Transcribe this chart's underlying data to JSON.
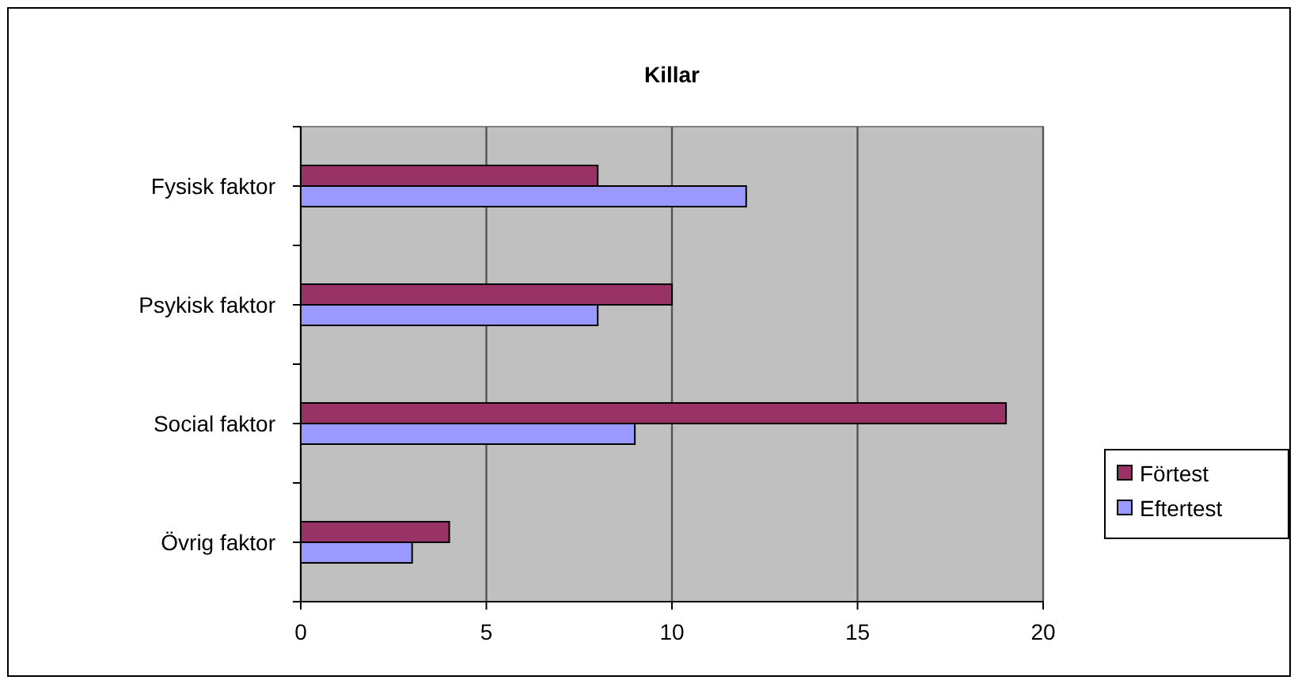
{
  "chart_data": {
    "type": "bar",
    "orientation": "horizontal",
    "title": "Killar",
    "categories": [
      "Fysisk faktor",
      "Psykisk faktor",
      "Social faktor",
      "Övrig faktor"
    ],
    "series": [
      {
        "name": "Förtest",
        "color": "#993366",
        "values": [
          8,
          10,
          19,
          4
        ]
      },
      {
        "name": "Eftertest",
        "color": "#9999ff",
        "values": [
          12,
          8,
          9,
          3
        ]
      }
    ],
    "xlim": [
      0,
      20
    ],
    "xticks": [
      0,
      5,
      10,
      15,
      20
    ],
    "grid": "x",
    "legend": "right"
  }
}
